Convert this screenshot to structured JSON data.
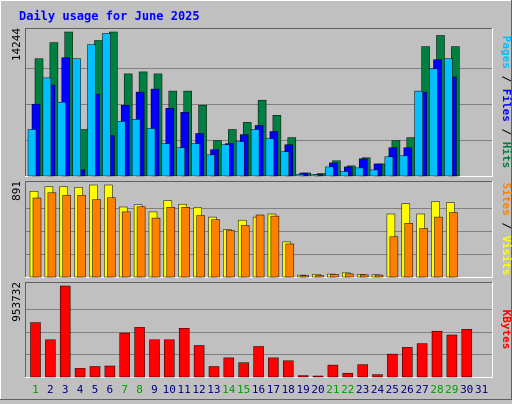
{
  "chart_data": {
    "type": "bar",
    "title": "Daily usage for June 2025",
    "categories": [
      "1",
      "2",
      "3",
      "4",
      "5",
      "6",
      "7",
      "8",
      "9",
      "10",
      "11",
      "12",
      "13",
      "14",
      "15",
      "16",
      "17",
      "18",
      "19",
      "20",
      "21",
      "22",
      "23",
      "24",
      "25",
      "26",
      "27",
      "28",
      "29",
      "30",
      "31"
    ],
    "weekend_days": [
      "1",
      "7",
      "8",
      "14",
      "15",
      "21",
      "22",
      "28",
      "29"
    ],
    "panels": [
      {
        "id": "hits",
        "y_tick_label": "14244",
        "ylim": [
          0,
          14244
        ],
        "series": [
          {
            "name": "Hits",
            "color": "#008040",
            "values": [
              11600,
              13200,
              14244,
              4600,
              13400,
              14244,
              10100,
              10300,
              10100,
              8400,
              8400,
              7000,
              3500,
              4600,
              5300,
              7500,
              6000,
              3800,
              300,
              250,
              1500,
              1000,
              1800,
              1200,
              3500,
              3800,
              12800,
              13900,
              12800,
              0,
              0
            ]
          },
          {
            "name": "Files",
            "color": "#0000ff",
            "values": [
              7100,
              9000,
              11700,
              600,
              8100,
              4000,
              7000,
              8300,
              8600,
              6700,
              6300,
              4200,
              2600,
              3200,
              4100,
              5000,
              4400,
              3100,
              300,
              150,
              1300,
              900,
              1700,
              1200,
              2800,
              2800,
              8300,
              11500,
              9800,
              0,
              0
            ]
          },
          {
            "name": "Pages",
            "color": "#00c0ff",
            "values": [
              4600,
              9700,
              7300,
              11600,
              13000,
              14100,
              5400,
              5600,
              4700,
              3200,
              2800,
              3200,
              2100,
              3100,
              3400,
              4600,
              3700,
              2400,
              160,
              130,
              900,
              450,
              800,
              600,
              1900,
              2000,
              8400,
              10600,
              11600,
              0,
              0
            ]
          }
        ]
      },
      {
        "id": "visits",
        "y_tick_label": "891",
        "ylim": [
          0,
          891
        ],
        "series": [
          {
            "name": "Visits",
            "color": "#ffff00",
            "values": [
              830,
              874,
              874,
              868,
              891,
              891,
              678,
              700,
              630,
              740,
              705,
              670,
              580,
              460,
              550,
              580,
              610,
              340,
              18,
              25,
              28,
              40,
              25,
              22,
              610,
              710,
              610,
              730,
              720,
              0,
              0
            ]
          },
          {
            "name": "Sites",
            "color": "#ff8000",
            "values": [
              765,
              815,
              790,
              790,
              750,
              768,
              630,
              680,
              570,
              675,
              675,
              595,
              555,
              450,
              500,
              600,
              590,
              320,
              13,
              15,
              25,
              30,
              20,
              18,
              390,
              520,
              470,
              580,
              625,
              0,
              0
            ]
          }
        ]
      },
      {
        "id": "kbytes",
        "y_tick_label": "953732",
        "ylim": [
          0,
          953732
        ],
        "series": [
          {
            "name": "KBytes",
            "color": "#ff0000",
            "values": [
              570000,
              390000,
              953732,
              90000,
              110000,
              115000,
              460000,
              520000,
              390000,
              390000,
              510000,
              330000,
              110000,
              200000,
              150000,
              320000,
              200000,
              170000,
              15000,
              10000,
              125000,
              40000,
              130000,
              25000,
              240000,
              310000,
              350000,
              480000,
              440000,
              500000,
              0
            ]
          }
        ]
      }
    ],
    "side_labels": {
      "top": [
        "Pages",
        "Files",
        "Hits"
      ],
      "middle": [
        "Sites",
        "Visits"
      ],
      "bottom": [
        "KBytes"
      ],
      "separator": "/"
    },
    "colors": {
      "background": "#c0c0c0",
      "title": "#0000ff",
      "weekday_label": "#000080",
      "weekend_label": "#00a000",
      "gridline": "#808080"
    }
  }
}
